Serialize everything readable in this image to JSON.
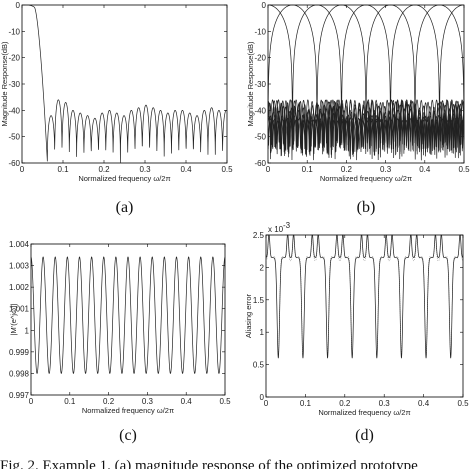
{
  "chart_data": [
    {
      "id": "a",
      "type": "line",
      "caption": "(a)",
      "xlabel": "Normalized frequency ω/2π",
      "ylabel": "Magnitude Response(dB)",
      "xlim": [
        0,
        0.5
      ],
      "ylim": [
        -60,
        0
      ],
      "xticks": [
        "0",
        "0.1",
        "0.2",
        "0.3",
        "0.4",
        "0.5"
      ],
      "yticks": [
        "0",
        "-10",
        "-20",
        "-30",
        "-40",
        "-50",
        "-60"
      ],
      "grid": false,
      "series": [
        {
          "passband_edge": 0.03,
          "stopband_start": 0.062,
          "sidelobe_period": 0.0178,
          "sidelobe_peaks_db": [
            -42,
            -36,
            -37,
            -40,
            -41,
            -42,
            -43,
            -41,
            -40,
            -41,
            -42,
            -40,
            -39,
            -38,
            -39,
            -40,
            -41,
            -40,
            -40,
            -41,
            -42,
            -40,
            -39,
            -40
          ]
        }
      ]
    },
    {
      "id": "b",
      "type": "line",
      "caption": "(b)",
      "xlabel": "Normalized frequency ω/2π",
      "ylabel": "Magnitude Response(dB)",
      "xlim": [
        0,
        0.5
      ],
      "ylim": [
        -60,
        0
      ],
      "xticks": [
        "0",
        "0.1",
        "0.2",
        "0.3",
        "0.4",
        "0.5"
      ],
      "yticks": [
        "0",
        "-10",
        "-20",
        "-30",
        "-40",
        "-50",
        "-60"
      ],
      "grid": false,
      "series": [
        {
          "band_center": 0.0
        },
        {
          "band_center": 0.0625
        },
        {
          "band_center": 0.125
        },
        {
          "band_center": 0.1875
        },
        {
          "band_center": 0.25
        },
        {
          "band_center": 0.3125
        },
        {
          "band_center": 0.375
        },
        {
          "band_center": 0.4375
        },
        {
          "band_center": 0.5
        }
      ]
    },
    {
      "id": "c",
      "type": "line",
      "caption": "(c)",
      "xlabel": "Normalized frequency ω/2π",
      "ylabel": "|M'(e^jω)|",
      "xlim": [
        0,
        0.5
      ],
      "ylim": [
        0.997,
        1.004
      ],
      "xticks": [
        "0",
        "0.1",
        "0.2",
        "0.3",
        "0.4",
        "0.5"
      ],
      "yticks": [
        "1.004",
        "1.003",
        "1.002",
        "1.001",
        "1",
        "0.999",
        "0.998",
        "0.997"
      ],
      "grid": false,
      "series": [
        {
          "mean": 1.0,
          "max": 1.0034,
          "min": 0.998,
          "period": 0.03125
        }
      ]
    },
    {
      "id": "d",
      "type": "line",
      "caption": "(d)",
      "xlabel": "Normalized frequency ω/2π",
      "ylabel": "Aliasing error",
      "exponent_label": "x 10",
      "exponent_power": "-3",
      "xlim": [
        0,
        0.5
      ],
      "ylim": [
        0,
        2.5
      ],
      "xticks": [
        "0",
        "0.1",
        "0.2",
        "0.3",
        "0.4",
        "0.5"
      ],
      "yticks": [
        "2.5",
        "2",
        "1.5",
        "1",
        "0.5",
        "0"
      ],
      "grid": false,
      "series": [
        {
          "max": 2.52,
          "shoulder": 2.15,
          "min": 0.6,
          "period": 0.0625
        }
      ]
    }
  ],
  "figure_caption": "Fig. 2.    Example 1. (a) magnitude response of the optimized prototype"
}
